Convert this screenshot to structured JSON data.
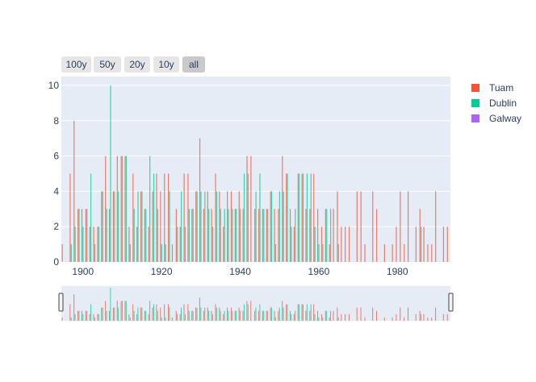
{
  "range_buttons": [
    {
      "label": "100y",
      "active": false
    },
    {
      "label": "50y",
      "active": false
    },
    {
      "label": "20y",
      "active": false
    },
    {
      "label": "10y",
      "active": false
    },
    {
      "label": "all",
      "active": true
    }
  ],
  "colors": {
    "Tuam": "#EF553B",
    "Dublin": "#00CC96",
    "Galway": "#AB63FA",
    "plot_bg": "#E5ECF6",
    "grid": "#ffffff",
    "text": "#2a3f5f"
  },
  "chart_data": {
    "type": "bar",
    "barmode": "group",
    "title": "",
    "xlabel": "",
    "ylabel": "",
    "xlim": [
      1894.5,
      1993.5
    ],
    "ylim": [
      0,
      10.5
    ],
    "x_ticks": [
      "1900",
      "1920",
      "1940",
      "1960",
      "1980"
    ],
    "y_ticks": [
      "0",
      "2",
      "4",
      "6",
      "8",
      "10"
    ],
    "grid": true,
    "legend": "right",
    "rangeslider": true,
    "years": [
      1895,
      1896,
      1897,
      1898,
      1899,
      1900,
      1901,
      1902,
      1903,
      1904,
      1905,
      1906,
      1907,
      1908,
      1909,
      1910,
      1911,
      1912,
      1913,
      1914,
      1915,
      1916,
      1917,
      1918,
      1919,
      1920,
      1921,
      1922,
      1923,
      1924,
      1925,
      1926,
      1927,
      1928,
      1929,
      1930,
      1931,
      1932,
      1933,
      1934,
      1935,
      1936,
      1937,
      1938,
      1939,
      1940,
      1941,
      1942,
      1943,
      1944,
      1945,
      1946,
      1947,
      1948,
      1949,
      1950,
      1951,
      1952,
      1953,
      1954,
      1955,
      1956,
      1957,
      1958,
      1959,
      1960,
      1961,
      1962,
      1963,
      1964,
      1965,
      1966,
      1967,
      1968,
      1969,
      1970,
      1971,
      1972,
      1973,
      1974,
      1975,
      1976,
      1977,
      1978,
      1979,
      1980,
      1981,
      1982,
      1983,
      1984,
      1985,
      1986,
      1987,
      1988,
      1989,
      1990,
      1991,
      1992,
      1993
    ],
    "series": [
      {
        "name": "Tuam",
        "values": [
          1,
          0,
          5,
          8,
          3,
          3,
          3,
          2,
          2,
          2,
          4,
          6,
          3,
          4,
          6,
          6,
          6,
          2,
          5,
          2,
          4,
          3,
          2,
          4,
          5,
          4,
          5,
          5,
          1,
          3,
          2,
          5,
          5,
          3,
          4,
          7,
          3,
          4,
          3,
          5,
          4,
          2,
          4,
          4,
          3,
          4,
          3,
          6,
          6,
          3,
          3,
          3,
          3,
          4,
          3,
          3,
          6,
          5,
          3,
          2,
          5,
          5,
          3,
          3,
          5,
          3,
          2,
          3,
          1,
          3,
          4,
          2,
          2,
          2,
          0,
          4,
          4,
          1,
          0,
          4,
          3,
          0,
          1,
          0,
          1,
          2,
          4,
          1,
          4,
          0,
          2,
          3,
          2,
          1,
          1,
          4,
          0,
          2,
          2
        ]
      },
      {
        "name": "Dublin",
        "values": [
          0,
          0,
          1,
          2,
          3,
          2,
          3,
          5,
          1,
          2,
          4,
          3,
          10,
          4,
          4,
          6,
          6,
          1,
          3,
          4,
          4,
          3,
          6,
          5,
          3,
          1,
          1,
          4,
          0,
          2,
          4,
          2,
          3,
          3,
          4,
          4,
          4,
          3,
          2,
          4,
          3,
          3,
          3,
          3,
          3,
          3,
          5,
          5,
          0,
          4,
          5,
          3,
          3,
          4,
          1,
          4,
          4,
          5,
          2,
          3,
          5,
          5,
          5,
          5,
          2,
          1,
          1,
          3,
          3,
          0,
          1,
          0,
          0,
          0,
          0,
          0,
          0,
          0,
          0,
          0,
          0,
          0,
          0,
          0,
          0,
          0,
          0,
          0,
          0,
          0,
          0,
          2,
          0,
          0,
          0,
          0,
          0,
          0,
          0
        ]
      },
      {
        "name": "Galway",
        "values": [
          0,
          0,
          0,
          0,
          0,
          0,
          0,
          0,
          0,
          0,
          0,
          0,
          0,
          0,
          0,
          0,
          0,
          0,
          0,
          0,
          0,
          0,
          0,
          0,
          0,
          0,
          0,
          0,
          0,
          0,
          0,
          0,
          0,
          0,
          0,
          0,
          0,
          0,
          0,
          0,
          0,
          0,
          0,
          0,
          0,
          0,
          0,
          0,
          0,
          0,
          0,
          0,
          0,
          0,
          0,
          0,
          0,
          0,
          0,
          0,
          0,
          0,
          0,
          0,
          0,
          0,
          0,
          0,
          0,
          0,
          0,
          0,
          0,
          0,
          0,
          0,
          0,
          0,
          0,
          0,
          0,
          0,
          0,
          0,
          0,
          0,
          0,
          0,
          0,
          0,
          0,
          0,
          0,
          0,
          0,
          0,
          0,
          0,
          0
        ]
      }
    ]
  }
}
